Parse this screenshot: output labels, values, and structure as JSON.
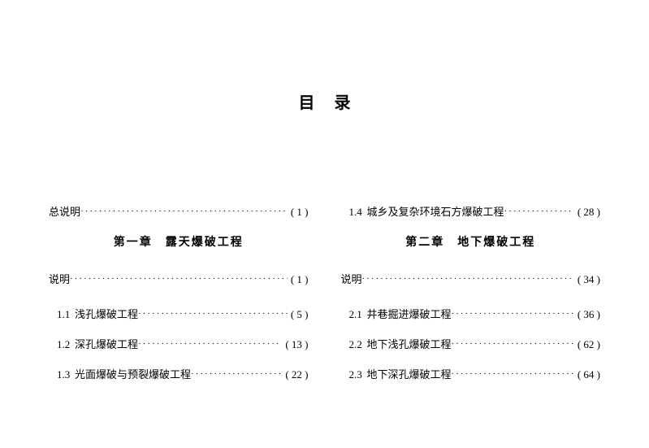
{
  "title": "目录",
  "left": {
    "intro": {
      "label": "总说明",
      "page": "( 1 )"
    },
    "chapter": "第一章　露天爆破工程",
    "explain": {
      "label": "说明",
      "page": "( 1 )"
    },
    "items": [
      {
        "num": "1.1",
        "label": "浅孔爆破工程",
        "page": "( 5 )"
      },
      {
        "num": "1.2",
        "label": "深孔爆破工程",
        "page": "( 13 )"
      },
      {
        "num": "1.3",
        "label": "光面爆破与预裂爆破工程",
        "page": "( 22 )"
      }
    ]
  },
  "right": {
    "topitem": {
      "num": "1.4",
      "label": "城乡及复杂环境石方爆破工程",
      "page": "( 28 )"
    },
    "chapter": "第二章　地下爆破工程",
    "explain": {
      "label": "说明",
      "page": "( 34 )"
    },
    "items": [
      {
        "num": "2.1",
        "label": "井巷掘进爆破工程",
        "page": "( 36 )"
      },
      {
        "num": "2.2",
        "label": "地下浅孔爆破工程",
        "page": "( 62 )"
      },
      {
        "num": "2.3",
        "label": "地下深孔爆破工程",
        "page": "( 64 )"
      }
    ]
  }
}
